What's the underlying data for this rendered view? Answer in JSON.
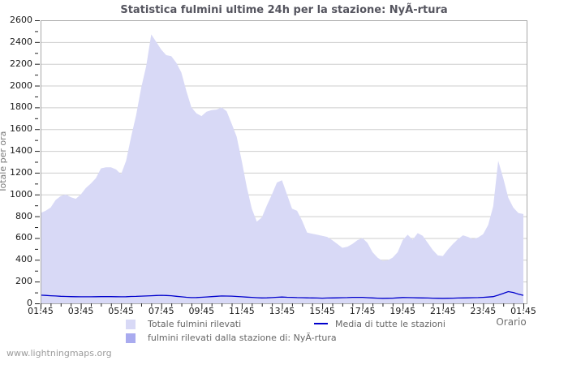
{
  "title": "Statistica fulmini ultime 24h per la stazione: NyÃ-rtura",
  "watermark": "www.lightningmaps.org",
  "axes": {
    "y_title": "Totale per ora",
    "x_title": "Orario"
  },
  "legend": {
    "total_label": "Totale fulmini rilevati",
    "media_label": "Media di tutte le stazioni",
    "station_label": "fulmini rilevati dalla stazione di: NyÃ-rtura"
  },
  "colors": {
    "total_area": "#d8d9f6",
    "station_area": "#a9abef",
    "media_line": "#0000cc",
    "grid": "#cdcdcd",
    "frame": "#a8a8a8",
    "title_text": "#55555f"
  },
  "chart_data": {
    "type": "area",
    "title": "Statistica fulmini ultime 24h per la stazione: NyÃ-rtura",
    "xlabel": "Orario",
    "ylabel": "Totale per ora",
    "ylim": [
      0,
      2600
    ],
    "y_tick_step": 200,
    "y_minor_tick_step": 100,
    "grid": "horizontal-only",
    "legend_position": "bottom",
    "x_range_hours": 24,
    "x_major_tick_hours": 2,
    "x_minor_tick_hours": 0.5,
    "x_tick_labels": [
      "01:45",
      "03:45",
      "05:45",
      "07:45",
      "09:45",
      "11:45",
      "13:45",
      "15:45",
      "17:45",
      "19:45",
      "21:45",
      "23:45",
      "01:45"
    ],
    "sample_interval_hours": 0.25,
    "series": [
      {
        "name": "Totale fulmini rilevati",
        "type": "area",
        "color": "#d8d9f6",
        "values": [
          830,
          850,
          880,
          950,
          985,
          1000,
          975,
          960,
          1000,
          1060,
          1100,
          1150,
          1240,
          1250,
          1250,
          1230,
          1185,
          1310,
          1530,
          1730,
          1980,
          2180,
          2470,
          2400,
          2330,
          2280,
          2270,
          2210,
          2120,
          1950,
          1800,
          1745,
          1720,
          1760,
          1775,
          1780,
          1800,
          1765,
          1650,
          1530,
          1310,
          1070,
          870,
          750,
          790,
          900,
          1000,
          1110,
          1130,
          1000,
          870,
          850,
          760,
          650,
          640,
          630,
          620,
          610,
          580,
          545,
          510,
          520,
          545,
          580,
          600,
          555,
          470,
          420,
          390,
          395,
          420,
          470,
          580,
          630,
          585,
          645,
          620,
          555,
          490,
          440,
          435,
          495,
          545,
          590,
          625,
          610,
          590,
          605,
          635,
          720,
          890,
          1310,
          1150,
          970,
          880,
          830,
          820
        ]
      },
      {
        "name": "Media di tutte le stazioni",
        "type": "line",
        "color": "#0000cc",
        "values": [
          75,
          73,
          70,
          68,
          65,
          63,
          62,
          61,
          60,
          60,
          60,
          61,
          62,
          62,
          62,
          61,
          60,
          61,
          63,
          64,
          66,
          68,
          70,
          72,
          74,
          72,
          70,
          65,
          60,
          56,
          53,
          54,
          56,
          59,
          62,
          65,
          68,
          67,
          66,
          63,
          60,
          57,
          55,
          52,
          50,
          51,
          53,
          56,
          58,
          56,
          55,
          53,
          52,
          51,
          50,
          49,
          48,
          49,
          50,
          51,
          52,
          53,
          55,
          55,
          55,
          52,
          50,
          48,
          46,
          47,
          48,
          51,
          54,
          53,
          52,
          51,
          50,
          49,
          48,
          47,
          46,
          47,
          48,
          49,
          50,
          51,
          52,
          53,
          55,
          58,
          62,
          75,
          92,
          108,
          100,
          85,
          74
        ]
      },
      {
        "name": "fulmini rilevati dalla stazione di: NyÃ-rtura",
        "type": "area",
        "color": "#a9abef",
        "constant_value": 0
      }
    ]
  }
}
